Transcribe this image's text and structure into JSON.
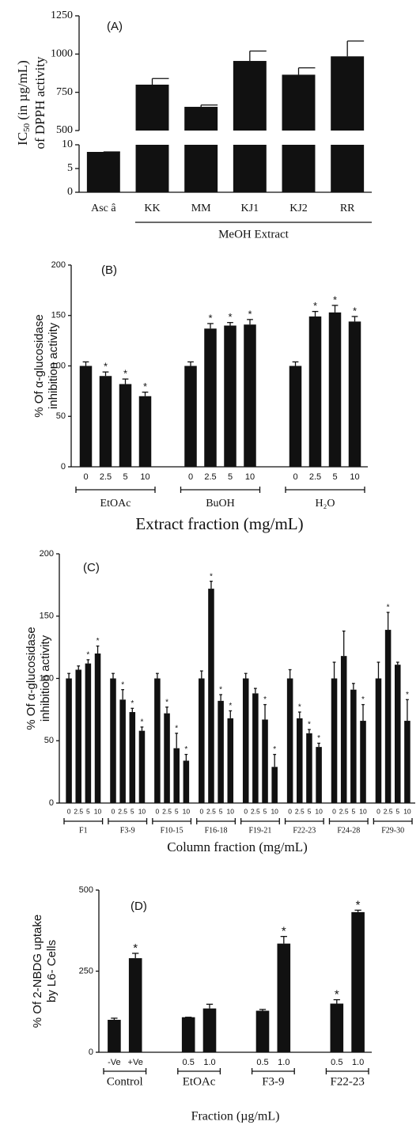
{
  "chart_data": [
    {
      "type": "broken-bar",
      "panel_label": "(A)",
      "ylabel": {
        "main": "IC",
        "sub": "50",
        "rest": " (in µg/mL)",
        "line2": "of DPPH activity"
      },
      "categories": [
        "Asc â",
        "KK",
        "MM",
        "KJ1",
        "KJ2",
        "RR"
      ],
      "values": [
        8.5,
        800,
        655,
        955,
        865,
        985
      ],
      "errors": [
        0,
        40,
        12,
        65,
        45,
        100
      ],
      "ylim": [
        0,
        1250
      ],
      "ybreak": [
        10,
        500
      ],
      "yticks": [
        0,
        5,
        10,
        500,
        750,
        1000,
        1250
      ],
      "group_label": "MeOH Extract",
      "color": "#111111"
    },
    {
      "type": "grouped-bar",
      "panel_label": "(B)",
      "ylabel": [
        "% Of α-glucosidase",
        "inhibition activity"
      ],
      "xlabel": "Extract fraction (mg/mL)",
      "ylim": [
        0,
        200
      ],
      "yticks": [
        0,
        50,
        100,
        150,
        200
      ],
      "star": "*",
      "color": "#111111",
      "groups": [
        {
          "name": "EtOAc",
          "categories": [
            "0",
            "2.5",
            "5",
            "10"
          ],
          "values": [
            100,
            90,
            82,
            70
          ],
          "errors": [
            4,
            4,
            5,
            4
          ],
          "significant": [
            false,
            true,
            true,
            true
          ]
        },
        {
          "name": "BuOH",
          "categories": [
            "0",
            "2.5",
            "5",
            "10"
          ],
          "values": [
            100,
            137,
            140,
            141
          ],
          "errors": [
            4,
            5,
            3,
            5
          ],
          "significant": [
            false,
            true,
            true,
            true
          ]
        },
        {
          "name": "H₂O",
          "categories": [
            "0",
            "2.5",
            "5",
            "10"
          ],
          "values": [
            100,
            149,
            153,
            144
          ],
          "errors": [
            4,
            5,
            7,
            5
          ],
          "significant": [
            false,
            true,
            true,
            true
          ]
        }
      ]
    },
    {
      "type": "grouped-bar",
      "panel_label": "(C)",
      "ylabel": [
        "% Of α-glucosidase",
        "inhibition activity"
      ],
      "xlabel": "Column fraction (mg/mL)",
      "ylim": [
        0,
        200
      ],
      "yticks": [
        0,
        50,
        100,
        150,
        200
      ],
      "star": "*",
      "color": "#111111",
      "groups": [
        {
          "name": "F1",
          "categories": [
            "0",
            "2.5",
            "5",
            "10"
          ],
          "values": [
            100,
            107,
            112,
            120
          ],
          "errors": [
            4,
            3,
            3,
            6
          ],
          "significant": [
            false,
            false,
            true,
            true
          ]
        },
        {
          "name": "F3-9",
          "categories": [
            "0",
            "2.5",
            "5",
            "10"
          ],
          "values": [
            100,
            83,
            73,
            58
          ],
          "errors": [
            4,
            8,
            3,
            3
          ],
          "significant": [
            false,
            true,
            true,
            true
          ]
        },
        {
          "name": "F10-15",
          "categories": [
            "0",
            "2.5",
            "5",
            "10"
          ],
          "values": [
            100,
            72,
            44,
            34
          ],
          "errors": [
            4,
            5,
            12,
            5
          ],
          "significant": [
            false,
            true,
            true,
            true
          ]
        },
        {
          "name": "F16-18",
          "categories": [
            "0",
            "2.5",
            "5",
            "10"
          ],
          "values": [
            100,
            172,
            82,
            68
          ],
          "errors": [
            6,
            6,
            5,
            6
          ],
          "significant": [
            false,
            true,
            true,
            true
          ]
        },
        {
          "name": "F19-21",
          "categories": [
            "0",
            "2.5",
            "5",
            "10"
          ],
          "values": [
            100,
            88,
            67,
            29
          ],
          "errors": [
            4,
            4,
            12,
            10
          ],
          "significant": [
            false,
            false,
            true,
            true
          ]
        },
        {
          "name": "F22-23",
          "categories": [
            "0",
            "2.5",
            "5",
            "10"
          ],
          "values": [
            100,
            68,
            56,
            45
          ],
          "errors": [
            7,
            5,
            3,
            3
          ],
          "significant": [
            false,
            true,
            true,
            true
          ]
        },
        {
          "name": "F24-28",
          "categories": [
            "0",
            "2.5",
            "5",
            "10"
          ],
          "values": [
            100,
            118,
            91,
            66
          ],
          "errors": [
            13,
            20,
            5,
            13
          ],
          "significant": [
            false,
            false,
            false,
            true
          ]
        },
        {
          "name": "F29-30",
          "categories": [
            "0",
            "2.5",
            "5",
            "10"
          ],
          "values": [
            100,
            139,
            111,
            66
          ],
          "errors": [
            13,
            14,
            2,
            17
          ],
          "significant": [
            false,
            true,
            false,
            true
          ]
        }
      ]
    },
    {
      "type": "grouped-bar",
      "panel_label": "(D)",
      "ylabel": [
        "% Of 2-NBDG  uptake",
        "by L6- Cells"
      ],
      "xlabel": "Fraction (µg/mL)",
      "ylim": [
        0,
        500
      ],
      "yticks": [
        0,
        250,
        500
      ],
      "star": "*",
      "color": "#111111",
      "groups": [
        {
          "name": "Control",
          "categories": [
            "-Ve",
            "+Ve"
          ],
          "values": [
            100,
            290
          ],
          "errors": [
            5,
            15
          ],
          "significant": [
            false,
            true
          ]
        },
        {
          "name": "EtOAc",
          "categories": [
            "0.5",
            "1.0"
          ],
          "values": [
            108,
            135
          ],
          "errors": [
            0,
            13
          ],
          "significant": [
            false,
            false
          ]
        },
        {
          "name": "F3-9",
          "categories": [
            "0.5",
            "1.0"
          ],
          "values": [
            128,
            335
          ],
          "errors": [
            4,
            22
          ],
          "significant": [
            false,
            true
          ]
        },
        {
          "name": "F22-23",
          "categories": [
            "0.5",
            "1.0"
          ],
          "values": [
            150,
            432
          ],
          "errors": [
            12,
            6
          ],
          "significant": [
            true,
            true
          ]
        }
      ]
    }
  ]
}
